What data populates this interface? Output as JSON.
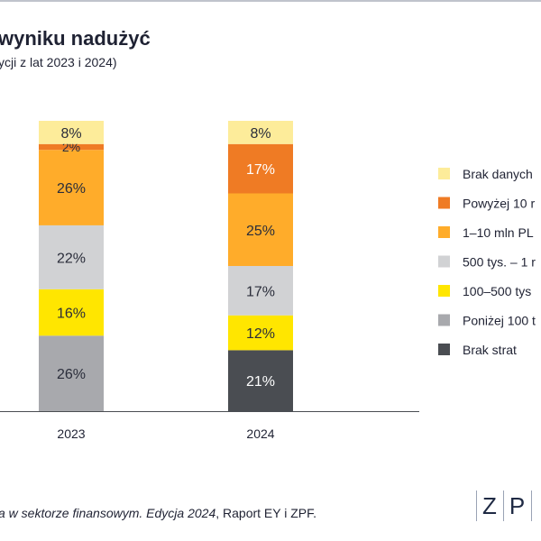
{
  "header": {
    "title": "wyniku nadużyć",
    "subtitle": "ycji z lat 2023 i 2024)"
  },
  "source": {
    "italic": "a w sektorze finansowym. Edycja 2024",
    "rest": ", Raport EY i ZPF."
  },
  "logo": {
    "letters": [
      "Z",
      "P"
    ]
  },
  "chart_data": {
    "type": "bar",
    "stacked": true,
    "categories": [
      "2023",
      "2024"
    ],
    "unit": "%",
    "ylim": [
      0,
      100
    ],
    "series": [
      {
        "name": "Brak strat",
        "color": "#4a4d52",
        "values": [
          0,
          21
        ]
      },
      {
        "name": "Poniżej 100 t",
        "color": "#a8a9ad",
        "values": [
          26,
          0
        ]
      },
      {
        "name": "100–500 tys",
        "color": "#ffe600",
        "values": [
          16,
          12
        ]
      },
      {
        "name": "500 tys. – 1 r",
        "color": "#d1d2d4",
        "values": [
          22,
          17
        ]
      },
      {
        "name": "1–10 mln PL",
        "color": "#ffac2a",
        "values": [
          26,
          25
        ]
      },
      {
        "name": "Powyżej 10 r",
        "color": "#ef7b24",
        "values": [
          2,
          17
        ]
      },
      {
        "name": "Brak danych",
        "color": "#fdec9a",
        "values": [
          8,
          8
        ]
      }
    ],
    "legend_order": [
      "Brak danych",
      "Powyżej 10 r",
      "1–10 mln PL",
      "500 tys. – 1 r",
      "100–500 tys",
      "Poniżej 100 t",
      "Brak strat"
    ],
    "legend_position": "right"
  }
}
